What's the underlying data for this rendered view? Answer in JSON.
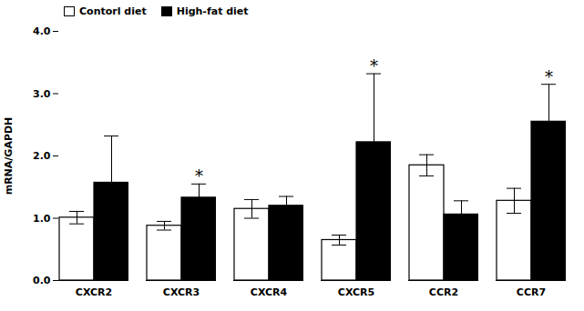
{
  "chart_data": {
    "type": "bar",
    "categories": [
      "CXCR2",
      "CXCR3",
      "CXCR4",
      "CXCR5",
      "CCR2",
      "CCR7"
    ],
    "series": [
      {
        "name": "Contorl diet",
        "color": "white",
        "values": [
          1.01,
          0.88,
          1.15,
          0.65,
          1.85,
          1.28
        ],
        "errors": [
          0.1,
          0.07,
          0.15,
          0.08,
          0.17,
          0.2
        ]
      },
      {
        "name": "High-fat diet",
        "color": "black",
        "values": [
          1.57,
          1.33,
          1.2,
          2.22,
          1.06,
          2.55
        ],
        "errors": [
          0.75,
          0.22,
          0.15,
          1.1,
          0.22,
          0.6
        ]
      }
    ],
    "annotations": [
      {
        "text": "*",
        "category": "CXCR3",
        "series": "High-fat diet"
      },
      {
        "text": "*",
        "category": "CXCR5",
        "series": "High-fat diet"
      },
      {
        "text": "*",
        "category": "CCR7",
        "series": "High-fat diet"
      }
    ],
    "ylabel": "mRNA/GAPDH",
    "ylim": [
      0.0,
      4.0
    ],
    "yticks": [
      {
        "value": 0.0,
        "label": "0.0"
      },
      {
        "value": 1.0,
        "label": "1.0"
      },
      {
        "value": 2.0,
        "label": "2.0"
      },
      {
        "value": 3.0,
        "label": "3.0"
      },
      {
        "value": 4.0,
        "label": "4.0"
      }
    ],
    "legend": "upper left",
    "grid": false
  }
}
